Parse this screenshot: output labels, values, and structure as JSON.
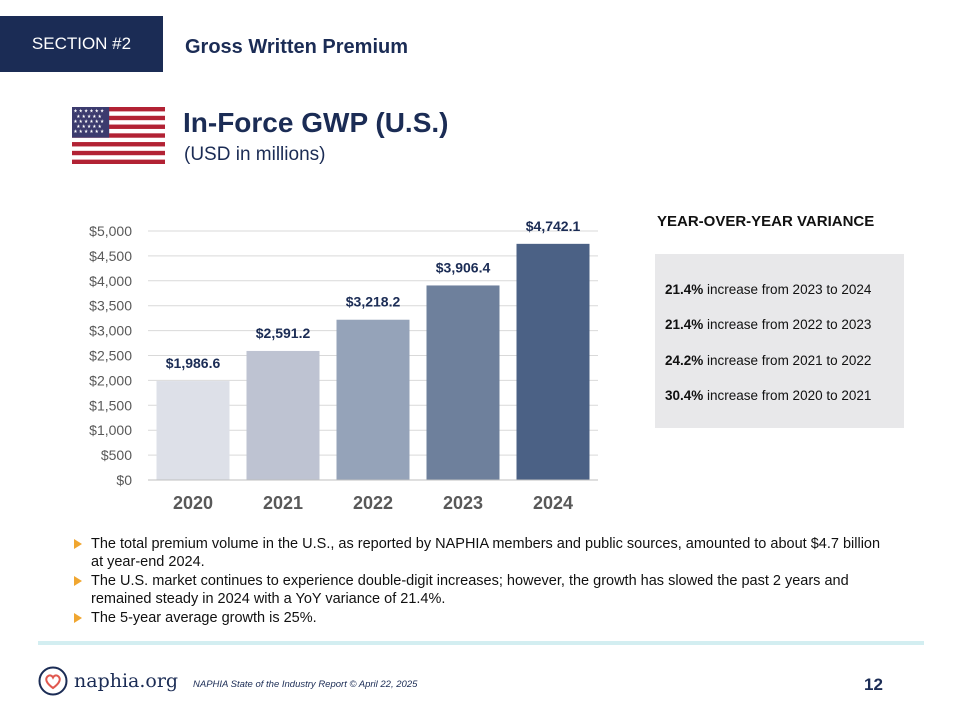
{
  "header": {
    "section_tag": "SECTION #2",
    "section_title": "Gross Written Premium"
  },
  "chart_title": "In-Force GWP (U.S.)",
  "chart_subtitle": "(USD in millions)",
  "chart_data": {
    "type": "bar",
    "categories": [
      "2020",
      "2021",
      "2022",
      "2023",
      "2024"
    ],
    "values": [
      1986.6,
      2591.2,
      3218.2,
      3906.4,
      4742.1
    ],
    "data_labels": [
      "$1,986.6",
      "$2,591.2",
      "$3,218.2",
      "$3,906.4",
      "$4,742.1"
    ],
    "bar_colors": [
      "#dde0e8",
      "#bec3d2",
      "#95a3b9",
      "#6e809c",
      "#4b6185"
    ],
    "ylim": [
      0,
      5000
    ],
    "yticks": [
      0,
      500,
      1000,
      1500,
      2000,
      2500,
      3000,
      3500,
      4000,
      4500,
      5000
    ],
    "ytick_labels": [
      "$0",
      "$500",
      "$1,000",
      "$1,500",
      "$2,000",
      "$2,500",
      "$3,000",
      "$3,500",
      "$4,000",
      "$4,500",
      "$5,000"
    ],
    "grid": true,
    "xlabel": "",
    "ylabel": "",
    "title": ""
  },
  "yoy": {
    "heading": "YEAR-OVER-YEAR VARIANCE",
    "rows": [
      {
        "pct": "21.4%",
        "text": " increase from 2023 to 2024"
      },
      {
        "pct": "21.4%",
        "text": " increase from 2022 to 2023"
      },
      {
        "pct": "24.2%",
        "text": " increase from 2021 to 2022"
      },
      {
        "pct": "30.4%",
        "text": " increase from 2020 to 2021"
      }
    ]
  },
  "bullets": [
    "The total premium volume in the U.S., as reported by NAPHIA members and public sources, amounted to about $4.7 billion at year-end 2024.",
    "The U.S. market continues to experience double-digit increases; however, the growth has slowed the past 2 years and remained steady in 2024 with a YoY variance of 21.4%.",
    "The 5-year average growth is 25%."
  ],
  "footer": {
    "logo_text": "naphia.org",
    "note": "NAPHIA State of the Industry Report © April 22, 2025",
    "page_number": "12"
  },
  "colors": {
    "navy": "#1b2c55",
    "bullet_arrow": "#f0a630",
    "divider": "#d3eef1",
    "yoy_box": "#e8e8ea"
  }
}
